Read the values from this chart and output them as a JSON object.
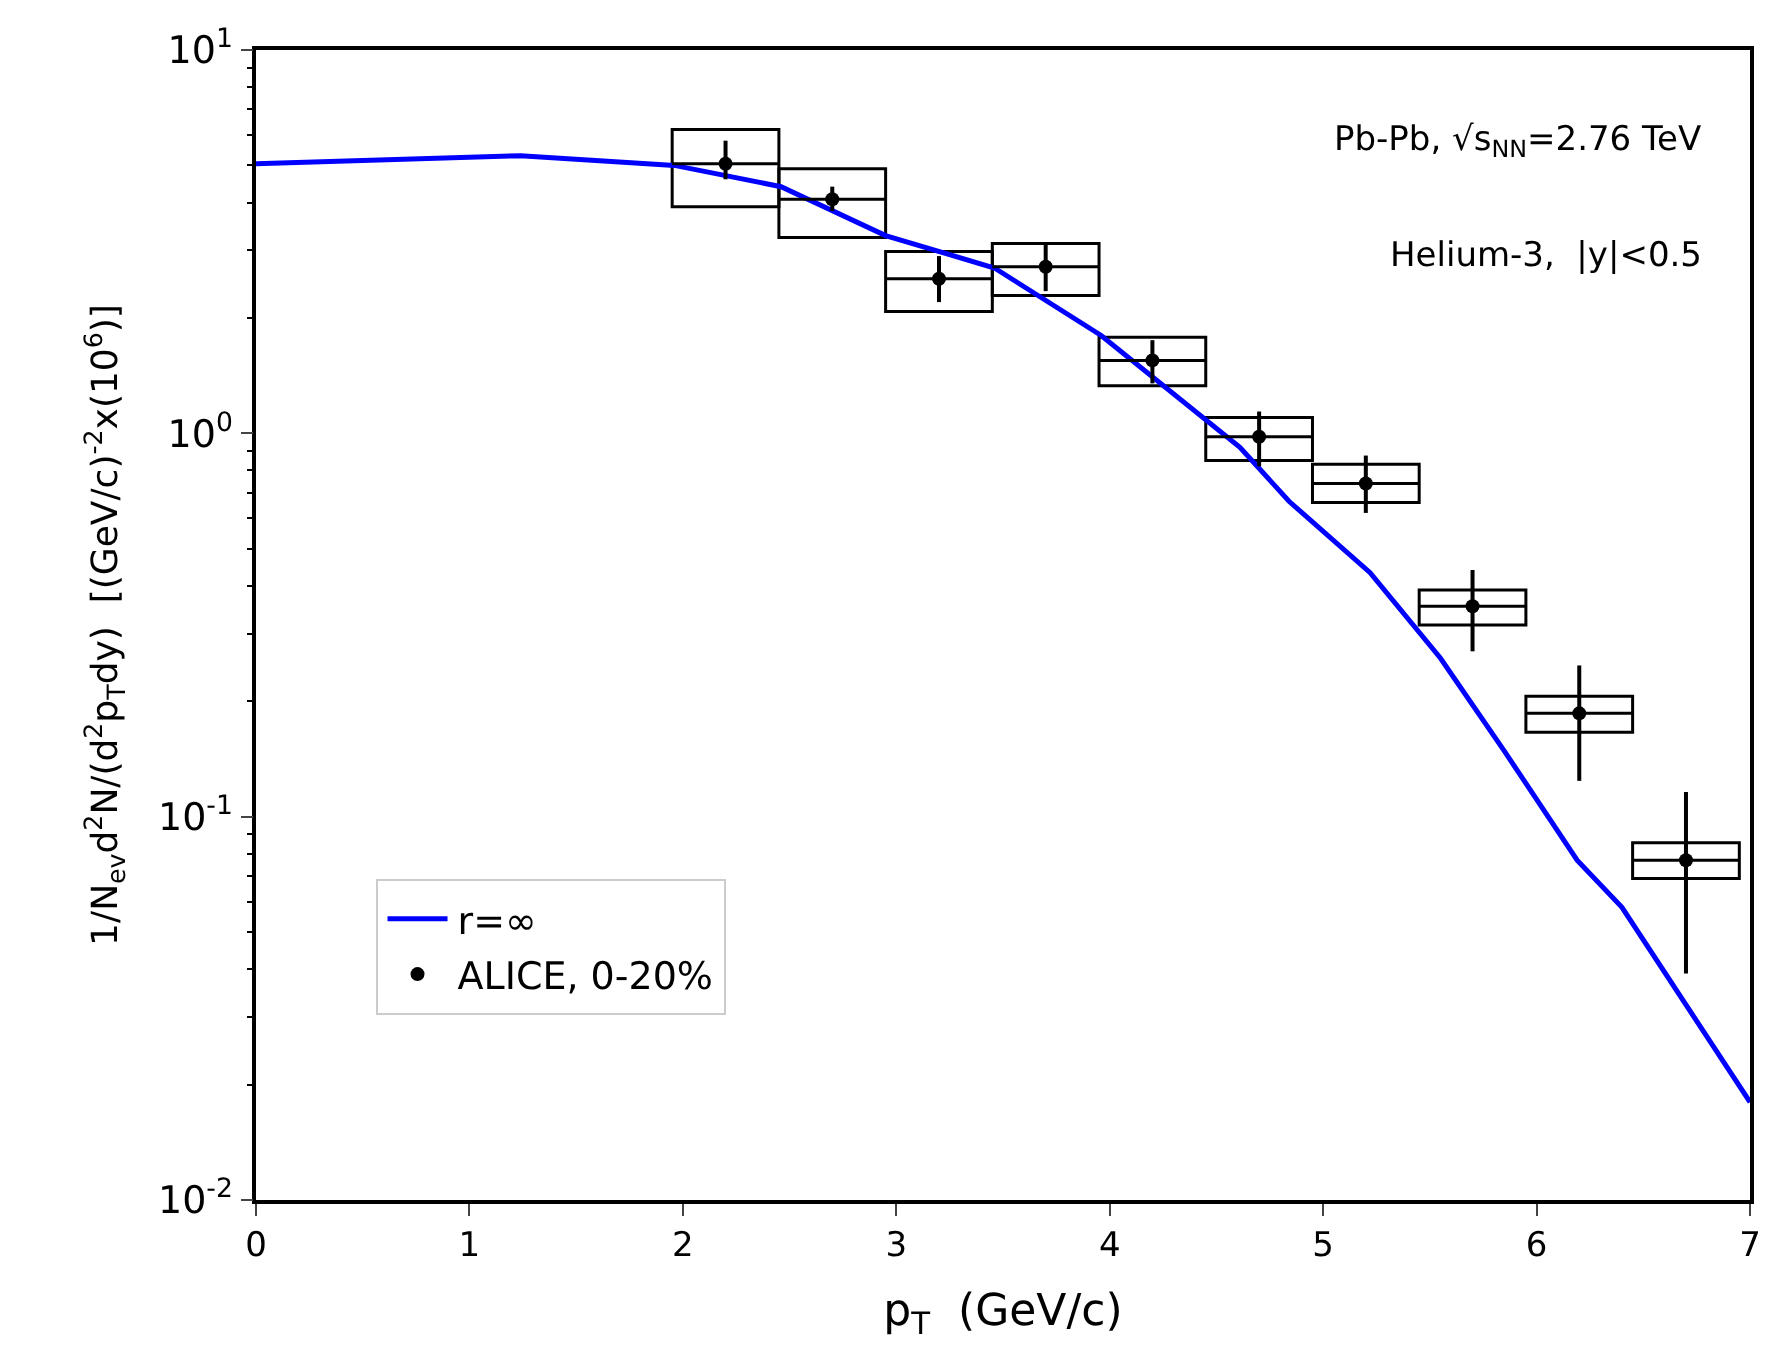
{
  "chart_data": {
    "type": "scatter",
    "xlabel": "p$_{T}$  (GeV/c)",
    "ylabel": "1/N$_{ev}$d$^{2}$N/(d$^{2}$p$_{T}$dy)  [(GeV/c)$^{-2}$x(10$^{6}$)]",
    "log": "y",
    "xlim": [
      0,
      7
    ],
    "xticks": [
      0,
      1,
      2,
      3,
      4,
      5,
      6,
      7
    ],
    "ylim": [
      0.01,
      10
    ],
    "yticks": [
      {
        "value": 0.01,
        "label": "10$^{-2}$"
      },
      {
        "value": 0.1,
        "label": "10$^{-1}$"
      },
      {
        "value": 1,
        "label": "10$^{0}$"
      },
      {
        "value": 10,
        "label": "10$^{1}$"
      }
    ],
    "grid": false,
    "legend": "bottom left",
    "series": [
      {
        "type": "line",
        "name": "r=∞",
        "color": "#0000ff",
        "x": [
          0,
          1.24,
          1.96,
          2.46,
          2.95,
          3.46,
          3.96,
          4.61,
          4.84,
          5.22,
          5.55,
          5.85,
          6.19,
          6.4,
          7.0
        ],
        "values": [
          5.05,
          5.3,
          5.0,
          4.4,
          3.28,
          2.7,
          1.8,
          0.92,
          0.665,
          0.433,
          0.259,
          0.148,
          0.077,
          0.058,
          0.018
        ]
      },
      {
        "type": "bar",
        "color": "#000000",
        "x": [
          2.2,
          2.7,
          3.2,
          3.7,
          4.2,
          4.7,
          5.2,
          5.7,
          6.2,
          6.7
        ],
        "base": [
          3.9,
          3.24,
          2.08,
          2.29,
          1.33,
          0.85,
          0.66,
          0.316,
          0.166,
          0.069
        ],
        "values": [
          2.3,
          1.66,
          0.9,
          0.84,
          0.45,
          0.25,
          0.17,
          0.074,
          0.04,
          0.0165
        ]
      },
      {
        "marker": "circle",
        "name": "ALICE, 0-20%",
        "color": "#000000",
        "x": [
          2.2,
          2.7,
          3.2,
          3.7,
          4.2,
          4.7,
          5.2,
          5.7,
          6.2,
          6.7
        ],
        "values": [
          5.05,
          4.08,
          2.53,
          2.72,
          1.55,
          0.98,
          0.74,
          0.354,
          0.186,
          0.077
        ],
        "errors": [
          [
            4.6,
            5.8
          ],
          [
            3.8,
            4.4
          ],
          [
            2.2,
            2.9
          ],
          [
            2.35,
            3.1
          ],
          [
            1.35,
            1.75
          ],
          [
            0.82,
            1.14
          ],
          [
            0.62,
            0.875
          ],
          [
            0.27,
            0.44
          ],
          [
            0.124,
            0.248
          ],
          [
            0.039,
            0.116
          ]
        ],
        "xerrors": [
          0.25,
          0.25,
          0.25,
          0.25,
          0.25,
          0.25,
          0.25,
          0.25,
          0.25,
          0.25
        ]
      }
    ],
    "annotations": [
      "Pb-Pb, √s$_{NN}$=2.76 TeV",
      "Helium-3,  |y|<0.5"
    ]
  }
}
